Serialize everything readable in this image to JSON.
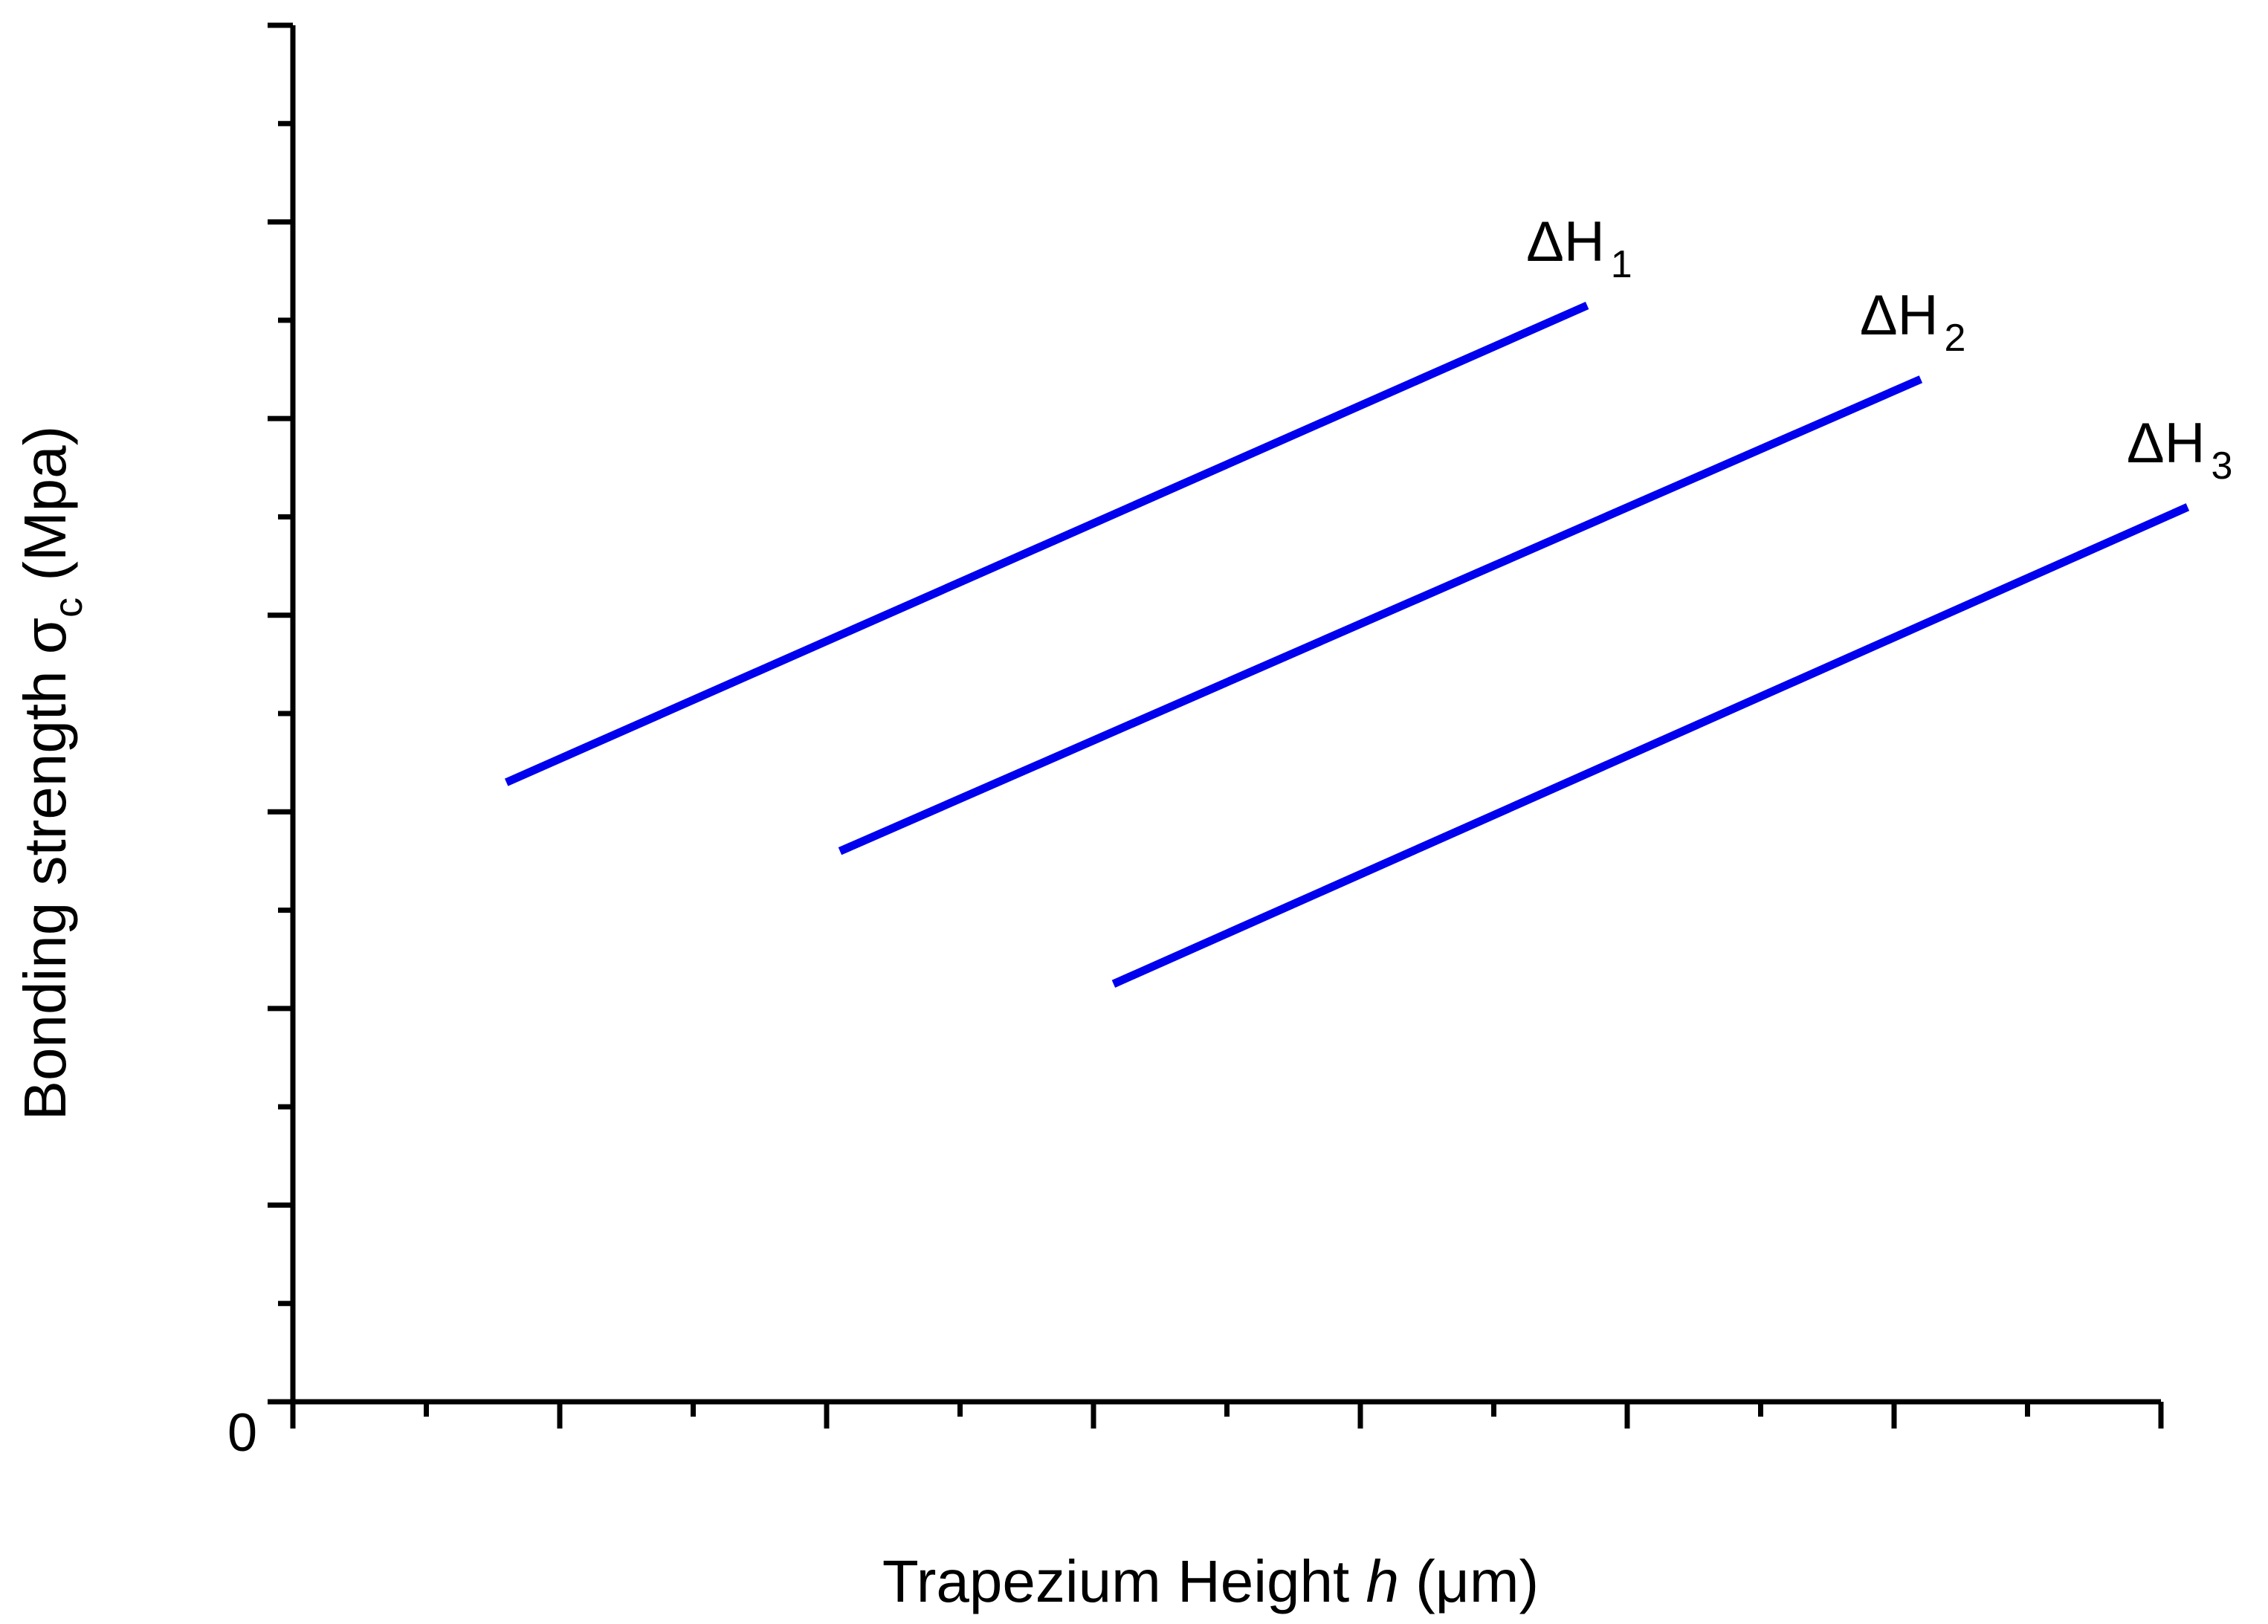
{
  "chart_data": {
    "type": "line",
    "title": "",
    "xlabel": {
      "main": "Trapezium Height ",
      "italic": "h",
      "unit": " (μm)"
    },
    "ylabel": {
      "main": "Bonding strength σ",
      "sub": "c",
      "unit": " (Mpa)"
    },
    "origin_label": "0",
    "xlim": [
      0,
      14
    ],
    "ylim": [
      0,
      14
    ],
    "x_major_ticks": [
      0,
      2,
      4,
      6,
      8,
      10,
      12,
      14
    ],
    "x_minor_ticks": [
      1,
      3,
      5,
      7,
      9,
      11,
      13
    ],
    "y_major_ticks": [
      0,
      1,
      2,
      3,
      4,
      5,
      6,
      7,
      8,
      9,
      10,
      11,
      12,
      13,
      14
    ],
    "y_minor_ticks": [],
    "grid": false,
    "legend": "none",
    "colors": {
      "series": "#0000ee",
      "axis": "#000000"
    },
    "series": [
      {
        "name": "ΔH1",
        "label_main": "ΔH",
        "label_sub": "1",
        "x": [
          1.6,
          9.7
        ],
        "y": [
          6.3,
          11.15
        ]
      },
      {
        "name": "ΔH2",
        "label_main": "ΔH",
        "label_sub": "2",
        "x": [
          4.1,
          12.2
        ],
        "y": [
          5.6,
          10.4
        ]
      },
      {
        "name": "ΔH3",
        "label_main": "ΔH",
        "label_sub": "3",
        "x": [
          6.15,
          14.2
        ],
        "y": [
          4.25,
          9.1
        ]
      }
    ]
  }
}
